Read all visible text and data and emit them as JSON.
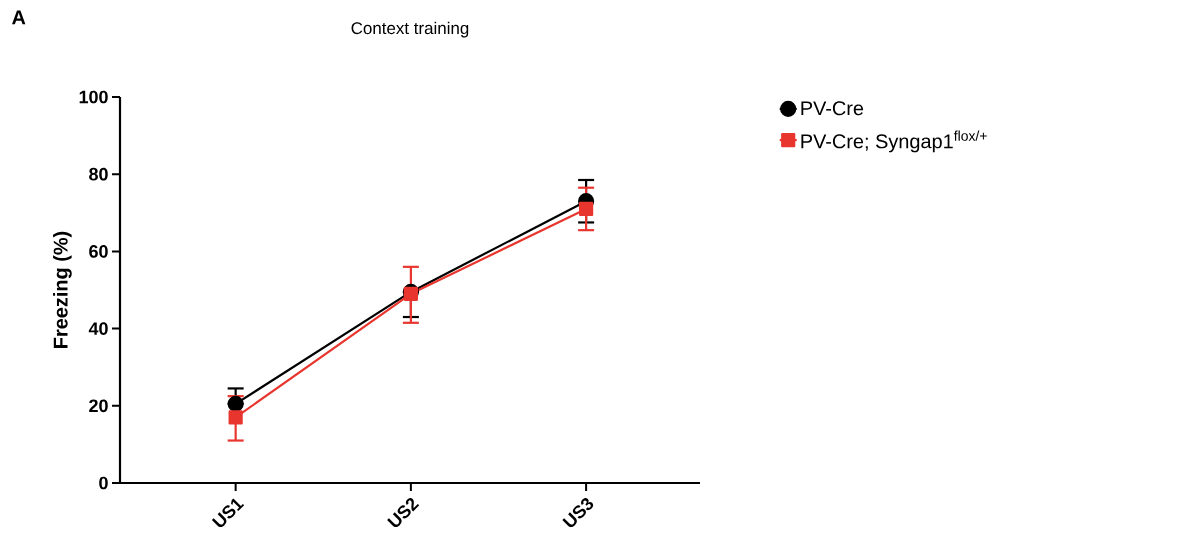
{
  "chart_data": {
    "type": "line",
    "title": "Context training",
    "ylabel": "Freezing (%)",
    "categories": [
      "US1",
      "US2",
      "US3"
    ],
    "series": [
      {
        "name": "PV-Cre",
        "color": "#000000",
        "marker": "circle",
        "values": [
          20.5,
          49.5,
          73
        ],
        "errors": [
          [
            20.5,
            24.5
          ],
          [
            43,
            49.5
          ],
          [
            67.5,
            78.5
          ]
        ]
      },
      {
        "name": "PV-Cre; Syngap1$^{flox/+}$",
        "color": "#e8352e",
        "marker": "square",
        "values": [
          17,
          49,
          71
        ],
        "errors": [
          [
            11,
            22.5
          ],
          [
            41.5,
            56
          ],
          [
            65.5,
            76.5
          ]
        ]
      }
    ],
    "ylim": [
      0,
      100
    ],
    "yticks": [
      0,
      20,
      40,
      60,
      80,
      100
    ],
    "legend": "top right",
    "grid": false,
    "annotations": [
      "A"
    ]
  }
}
